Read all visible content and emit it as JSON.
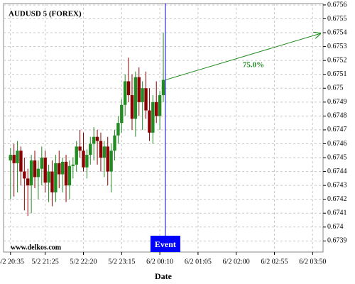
{
  "chart_data": {
    "type": "candlestick",
    "title": "AUDUSD 5 (FOREX)",
    "xlabel": "Date",
    "watermark": "www.delkos.com",
    "annotation": "75.0%",
    "event": {
      "label": "Event",
      "x": 44.6
    },
    "up_color": "#228b22",
    "down_color": "#8b0000",
    "grid": true,
    "xlim": [
      -2,
      90
    ],
    "ylim": [
      0.67382,
      0.67561
    ],
    "xticks": [
      {
        "value": 0,
        "label": "5/2 20:35"
      },
      {
        "value": 10,
        "label": "5/2 21:25"
      },
      {
        "value": 21,
        "label": "5/2 22:20"
      },
      {
        "value": 32,
        "label": "5/2 23:15"
      },
      {
        "value": 43,
        "label": "6/2 00:10"
      },
      {
        "value": 54,
        "label": "6/2 01:05"
      },
      {
        "value": 65,
        "label": "6/2 02:00"
      },
      {
        "value": 76,
        "label": "6/2 02:55"
      },
      {
        "value": 87,
        "label": "6/2 03:50"
      }
    ],
    "yticks": [
      0.6739,
      0.674,
      0.6741,
      0.6742,
      0.6743,
      0.6744,
      0.6745,
      0.6746,
      0.6747,
      0.6748,
      0.6749,
      0.675,
      0.6751,
      0.6752,
      0.6753,
      0.6754,
      0.6755,
      0.6756
    ],
    "open": [
      0.67448,
      0.67452,
      0.67446,
      0.67455,
      0.6744,
      0.67435,
      0.6743,
      0.67448,
      0.67436,
      0.67442,
      0.6745,
      0.67432,
      0.6744,
      0.67425,
      0.67446,
      0.67438,
      0.67447,
      0.6743,
      0.67444,
      0.67445,
      0.67458,
      0.67455,
      0.67443,
      0.67452,
      0.6746,
      0.67465,
      0.67462,
      0.6745,
      0.67458,
      0.6744,
      0.67455,
      0.67466,
      0.67475,
      0.67488,
      0.67505,
      0.67495,
      0.67478,
      0.67508,
      0.6749,
      0.675,
      0.67484,
      0.67468,
      0.6749,
      0.6748,
      0.67495
    ],
    "high": [
      0.67457,
      0.6746,
      0.67462,
      0.67458,
      0.6745,
      0.67442,
      0.67452,
      0.67455,
      0.67448,
      0.67458,
      0.67455,
      0.67445,
      0.67448,
      0.67452,
      0.67455,
      0.6745,
      0.67452,
      0.67448,
      0.6745,
      0.67462,
      0.6747,
      0.67468,
      0.67456,
      0.67465,
      0.67472,
      0.6747,
      0.67468,
      0.67462,
      0.67465,
      0.6746,
      0.6747,
      0.6748,
      0.67492,
      0.6751,
      0.67522,
      0.6751,
      0.67512,
      0.67515,
      0.67505,
      0.67512,
      0.675,
      0.67495,
      0.67505,
      0.67498,
      0.6754
    ],
    "low": [
      0.6742,
      0.67422,
      0.67425,
      0.6743,
      0.67412,
      0.67408,
      0.6741,
      0.67428,
      0.6742,
      0.6743,
      0.67425,
      0.67418,
      0.67415,
      0.67418,
      0.67428,
      0.67425,
      0.67418,
      0.6742,
      0.67435,
      0.6744,
      0.6745,
      0.6744,
      0.67435,
      0.67445,
      0.67448,
      0.67445,
      0.6744,
      0.67436,
      0.6743,
      0.67425,
      0.67448,
      0.6746,
      0.67468,
      0.6748,
      0.6749,
      0.6747,
      0.67465,
      0.6748,
      0.6747,
      0.67478,
      0.67462,
      0.6746,
      0.67475,
      0.6747,
      0.6749
    ],
    "close": [
      0.67452,
      0.67446,
      0.67455,
      0.6744,
      0.67435,
      0.6743,
      0.67448,
      0.67436,
      0.67442,
      0.6745,
      0.67432,
      0.6744,
      0.67425,
      0.67446,
      0.67438,
      0.67447,
      0.6743,
      0.67444,
      0.67445,
      0.67458,
      0.67455,
      0.67443,
      0.67452,
      0.6746,
      0.67465,
      0.67462,
      0.6745,
      0.67458,
      0.6744,
      0.67455,
      0.67466,
      0.67475,
      0.67488,
      0.67505,
      0.67495,
      0.67478,
      0.67508,
      0.6749,
      0.675,
      0.67484,
      0.67468,
      0.6749,
      0.6748,
      0.67495,
      0.67506
    ]
  }
}
